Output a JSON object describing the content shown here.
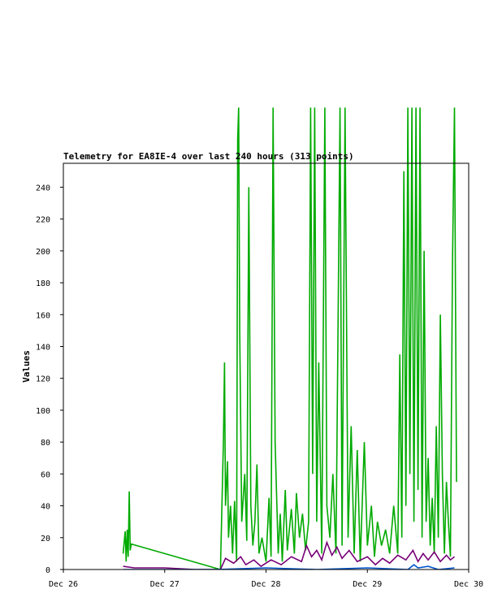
{
  "chart_data": {
    "type": "line",
    "title": "Telemetry for EA8IE-4 over last 240 hours (313 points)",
    "xlabel": "",
    "ylabel": "Values",
    "x_range": [
      "Dec 26",
      "Dec 30"
    ],
    "ylim": [
      0,
      255
    ],
    "x_ticks": [
      "Dec 26",
      "Dec 27",
      "Dec 28",
      "Dec 29",
      "Dec 30"
    ],
    "y_ticks": [
      0,
      20,
      40,
      60,
      80,
      100,
      120,
      140,
      160,
      180,
      200,
      220,
      240
    ],
    "grid": false,
    "legend": "none",
    "colors": {
      "green": "#00aa00",
      "purple": "#770077",
      "blue": "#0055cc",
      "axis": "#000000"
    },
    "series": [
      {
        "color": "#00aa00",
        "points": [
          [
            0.59,
            10
          ],
          [
            0.61,
            24
          ],
          [
            0.62,
            5
          ],
          [
            0.63,
            25
          ],
          [
            0.64,
            8
          ],
          [
            0.65,
            49
          ],
          [
            0.66,
            12
          ],
          [
            0.67,
            16
          ],
          [
            1.55,
            0
          ],
          [
            1.58,
            82
          ],
          [
            1.59,
            130
          ],
          [
            1.6,
            40
          ],
          [
            1.62,
            68
          ],
          [
            1.63,
            20
          ],
          [
            1.65,
            40
          ],
          [
            1.67,
            10
          ],
          [
            1.69,
            43
          ],
          [
            1.71,
            5
          ],
          [
            1.72,
            270
          ],
          [
            1.73,
            290
          ],
          [
            1.74,
            150
          ],
          [
            1.76,
            30
          ],
          [
            1.79,
            60
          ],
          [
            1.81,
            18
          ],
          [
            1.83,
            240
          ],
          [
            1.85,
            40
          ],
          [
            1.87,
            15
          ],
          [
            1.89,
            30
          ],
          [
            1.91,
            66
          ],
          [
            1.93,
            10
          ],
          [
            1.96,
            20
          ],
          [
            2.0,
            5
          ],
          [
            2.03,
            45
          ],
          [
            2.05,
            8
          ],
          [
            2.07,
            290
          ],
          [
            2.09,
            80
          ],
          [
            2.12,
            10
          ],
          [
            2.14,
            35
          ],
          [
            2.16,
            5
          ],
          [
            2.19,
            50
          ],
          [
            2.21,
            12
          ],
          [
            2.25,
            38
          ],
          [
            2.28,
            10
          ],
          [
            2.3,
            48
          ],
          [
            2.33,
            20
          ],
          [
            2.36,
            35
          ],
          [
            2.39,
            12
          ],
          [
            2.42,
            30
          ],
          [
            2.44,
            290
          ],
          [
            2.46,
            60
          ],
          [
            2.48,
            290
          ],
          [
            2.5,
            30
          ],
          [
            2.52,
            130
          ],
          [
            2.55,
            10
          ],
          [
            2.58,
            290
          ],
          [
            2.6,
            40
          ],
          [
            2.63,
            20
          ],
          [
            2.66,
            60
          ],
          [
            2.69,
            10
          ],
          [
            2.73,
            290
          ],
          [
            2.75,
            15
          ],
          [
            2.78,
            290
          ],
          [
            2.81,
            20
          ],
          [
            2.84,
            90
          ],
          [
            2.87,
            10
          ],
          [
            2.9,
            75
          ],
          [
            2.93,
            5
          ],
          [
            2.97,
            80
          ],
          [
            3.0,
            15
          ],
          [
            3.04,
            40
          ],
          [
            3.07,
            8
          ],
          [
            3.1,
            30
          ],
          [
            3.14,
            15
          ],
          [
            3.18,
            25
          ],
          [
            3.22,
            10
          ],
          [
            3.26,
            40
          ],
          [
            3.3,
            10
          ],
          [
            3.32,
            135
          ],
          [
            3.34,
            20
          ],
          [
            3.36,
            250
          ],
          [
            3.38,
            40
          ],
          [
            3.4,
            290
          ],
          [
            3.42,
            60
          ],
          [
            3.44,
            290
          ],
          [
            3.46,
            30
          ],
          [
            3.48,
            290
          ],
          [
            3.5,
            50
          ],
          [
            3.52,
            290
          ],
          [
            3.54,
            20
          ],
          [
            3.56,
            200
          ],
          [
            3.58,
            30
          ],
          [
            3.6,
            70
          ],
          [
            3.62,
            15
          ],
          [
            3.64,
            45
          ],
          [
            3.66,
            10
          ],
          [
            3.68,
            90
          ],
          [
            3.7,
            20
          ],
          [
            3.72,
            160
          ],
          [
            3.74,
            60
          ],
          [
            3.76,
            10
          ],
          [
            3.78,
            55
          ],
          [
            3.8,
            30
          ],
          [
            3.82,
            8
          ],
          [
            3.84,
            190
          ],
          [
            3.86,
            290
          ],
          [
            3.88,
            55
          ]
        ]
      },
      {
        "color": "#770077",
        "points": [
          [
            0.59,
            2
          ],
          [
            0.7,
            1
          ],
          [
            1.0,
            1
          ],
          [
            1.3,
            0
          ],
          [
            1.55,
            0
          ],
          [
            1.6,
            7
          ],
          [
            1.68,
            4
          ],
          [
            1.75,
            8
          ],
          [
            1.8,
            3
          ],
          [
            1.88,
            6
          ],
          [
            1.95,
            2
          ],
          [
            2.05,
            6
          ],
          [
            2.15,
            3
          ],
          [
            2.25,
            8
          ],
          [
            2.35,
            5
          ],
          [
            2.4,
            15
          ],
          [
            2.45,
            8
          ],
          [
            2.5,
            12
          ],
          [
            2.55,
            6
          ],
          [
            2.6,
            17
          ],
          [
            2.65,
            9
          ],
          [
            2.7,
            14
          ],
          [
            2.75,
            7
          ],
          [
            2.82,
            12
          ],
          [
            2.9,
            5
          ],
          [
            3.0,
            8
          ],
          [
            3.08,
            3
          ],
          [
            3.15,
            7
          ],
          [
            3.22,
            4
          ],
          [
            3.3,
            9
          ],
          [
            3.38,
            6
          ],
          [
            3.45,
            12
          ],
          [
            3.5,
            5
          ],
          [
            3.55,
            10
          ],
          [
            3.6,
            6
          ],
          [
            3.66,
            11
          ],
          [
            3.72,
            5
          ],
          [
            3.78,
            9
          ],
          [
            3.82,
            6
          ],
          [
            3.86,
            8
          ]
        ]
      },
      {
        "color": "#0055cc",
        "points": [
          [
            0.59,
            0
          ],
          [
            1.5,
            0
          ],
          [
            2.0,
            1
          ],
          [
            2.5,
            0
          ],
          [
            3.0,
            1
          ],
          [
            3.4,
            0
          ],
          [
            3.46,
            3
          ],
          [
            3.5,
            1
          ],
          [
            3.6,
            2
          ],
          [
            3.7,
            0
          ],
          [
            3.86,
            1
          ]
        ]
      }
    ]
  }
}
